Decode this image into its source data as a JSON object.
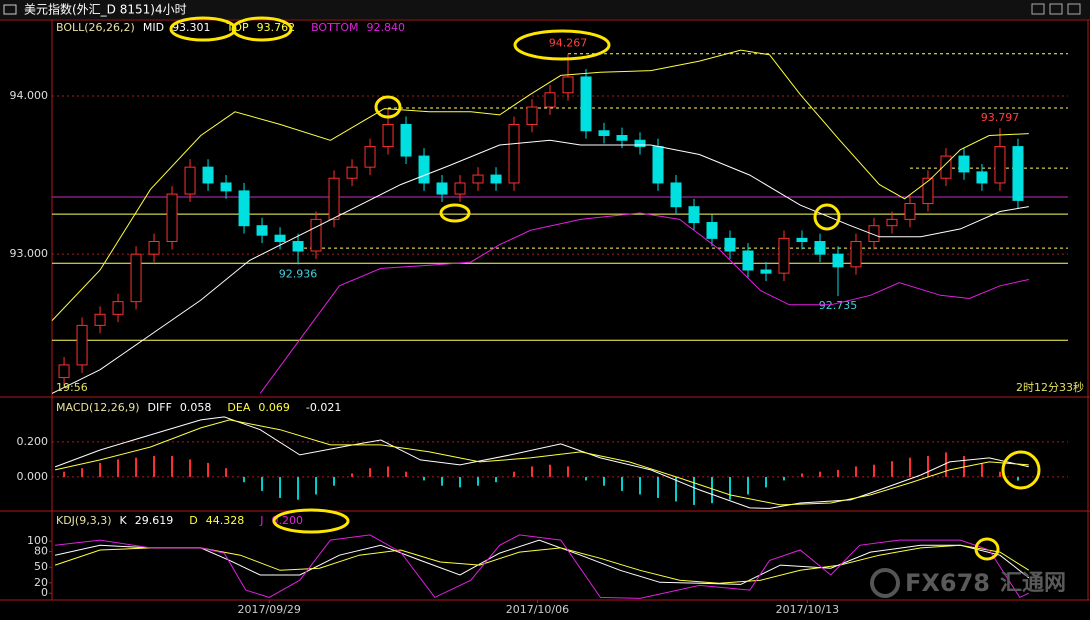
{
  "window": {
    "title": "美元指数(外汇_D 8151)4小时"
  },
  "status": {
    "time_left": "19:56",
    "time_right": "2时12分33秒"
  },
  "watermark": {
    "brand": "FX678",
    "name": "汇通网"
  },
  "chart_data": [
    {
      "type": "candlestick",
      "indicator": "BOLL(26,26,2)",
      "up_color": "#ff3030",
      "down_color": "#00e0e0",
      "xlim": [
        -0.67,
        55.78
      ],
      "ylim": [
        92.11,
        94.48
      ],
      "yticks": [
        {
          "value": 94,
          "label": "94.000"
        },
        {
          "value": 93,
          "label": "93.000"
        }
      ],
      "grid": true,
      "open": [
        92.22,
        92.3,
        92.55,
        92.62,
        92.7,
        93.0,
        93.08,
        93.38,
        93.55,
        93.45,
        93.4,
        93.18,
        93.12,
        93.08,
        93.02,
        93.22,
        93.48,
        93.55,
        93.68,
        93.82,
        93.62,
        93.45,
        93.38,
        93.45,
        93.5,
        93.45,
        93.82,
        93.93,
        94.02,
        94.12,
        93.78,
        93.75,
        93.72,
        93.68,
        93.45,
        93.3,
        93.2,
        93.1,
        93.02,
        92.9,
        92.88,
        93.1,
        93.08,
        93.0,
        92.92,
        93.08,
        93.18,
        93.22,
        93.32,
        93.48,
        93.62,
        93.52,
        93.45,
        93.68
      ],
      "high": [
        92.35,
        92.6,
        92.67,
        92.75,
        93.05,
        93.13,
        93.43,
        93.6,
        93.6,
        93.5,
        93.45,
        93.23,
        93.17,
        93.13,
        93.27,
        93.53,
        93.6,
        93.73,
        93.92,
        93.87,
        93.67,
        93.5,
        93.5,
        93.55,
        93.55,
        93.87,
        93.98,
        94.07,
        94.267,
        94.17,
        93.83,
        93.8,
        93.77,
        93.73,
        93.5,
        93.35,
        93.25,
        93.15,
        93.07,
        92.95,
        93.15,
        93.15,
        93.13,
        93.05,
        93.13,
        93.23,
        93.27,
        93.37,
        93.53,
        93.67,
        93.67,
        93.57,
        93.797,
        93.73
      ],
      "low": [
        92.17,
        92.25,
        92.5,
        92.57,
        92.65,
        92.95,
        93.03,
        93.33,
        93.4,
        93.35,
        93.13,
        93.07,
        93.03,
        92.936,
        92.97,
        93.17,
        93.43,
        93.5,
        93.63,
        93.57,
        93.4,
        93.33,
        93.33,
        93.4,
        93.4,
        93.4,
        93.77,
        93.88,
        93.97,
        93.73,
        93.7,
        93.67,
        93.63,
        93.4,
        93.25,
        93.15,
        93.05,
        92.97,
        92.85,
        92.83,
        92.83,
        93.03,
        92.95,
        92.735,
        92.87,
        93.03,
        93.13,
        93.17,
        93.27,
        93.43,
        93.47,
        93.4,
        93.4,
        93.29
      ],
      "close": [
        92.3,
        92.55,
        92.62,
        92.7,
        93.0,
        93.08,
        93.38,
        93.55,
        93.45,
        93.4,
        93.18,
        93.12,
        93.08,
        93.02,
        93.22,
        93.48,
        93.55,
        93.68,
        93.82,
        93.62,
        93.45,
        93.38,
        93.45,
        93.5,
        93.45,
        93.82,
        93.93,
        94.02,
        94.12,
        93.78,
        93.75,
        93.72,
        93.68,
        93.45,
        93.3,
        93.2,
        93.1,
        93.02,
        92.9,
        92.88,
        93.1,
        93.08,
        93.0,
        92.92,
        93.08,
        93.18,
        93.22,
        93.32,
        93.48,
        93.62,
        93.52,
        93.45,
        93.68,
        93.34
      ],
      "annotations": [
        {
          "field": "low",
          "index": 13,
          "color": "#40d0e0"
        },
        {
          "field": "high",
          "index": 28,
          "color": "#ff4040"
        },
        {
          "field": "low",
          "index": 43,
          "color": "#40d0e0"
        },
        {
          "field": "high",
          "index": 52,
          "color": "#ff4040"
        }
      ],
      "hlines": [
        {
          "value": 93.253,
          "color": "#ffff60",
          "dashed": false
        },
        {
          "value": 92.943,
          "color": "#ffff60",
          "dashed": false
        },
        {
          "value": 92.456,
          "color": "#ffff60",
          "dashed": false
        },
        {
          "value": 93.361,
          "color": "#c030c0",
          "dashed": false
        },
        {
          "value": 94.267,
          "color": "#ffff60",
          "dashed": true,
          "from": 28
        },
        {
          "value": 93.924,
          "color": "#ffff60",
          "dashed": true,
          "from": 18
        },
        {
          "value": 93.544,
          "color": "#ffff60",
          "dashed": true,
          "from": 47
        },
        {
          "value": 93.038,
          "color": "#ffff60",
          "dashed": true,
          "from": 13
        }
      ],
      "series": [
        {
          "name": "MID",
          "color": "#ffffff",
          "current": {
            "value": 93.301,
            "label": "93.301"
          },
          "x": [
            -0.67,
            2,
            4.8,
            7.6,
            10.3,
            13.1,
            15.9,
            18.7,
            21.4,
            24.2,
            27,
            28.7,
            32.6,
            35.3,
            38.1,
            40.9,
            43.7,
            45.3,
            47.6,
            49.8,
            52,
            53.6
          ],
          "values": [
            92.12,
            92.27,
            92.49,
            92.71,
            92.96,
            93.12,
            93.28,
            93.44,
            93.56,
            93.69,
            93.72,
            93.69,
            93.69,
            93.63,
            93.5,
            93.31,
            93.18,
            93.11,
            93.11,
            93.16,
            93.27,
            93.301
          ]
        },
        {
          "name": "TOP",
          "color": "#ffff40",
          "current": {
            "value": 93.762,
            "label": "93.762"
          },
          "x": [
            -0.67,
            2,
            4.8,
            7.6,
            9.5,
            12,
            14.8,
            17.8,
            20.3,
            22.6,
            24.2,
            25.9,
            27.6,
            29.8,
            32.6,
            35.3,
            37.6,
            39.2,
            40.9,
            43.1,
            45.3,
            46.7,
            48.1,
            49.8,
            51.4,
            53.6
          ],
          "values": [
            92.58,
            92.9,
            93.41,
            93.75,
            93.9,
            93.82,
            93.72,
            93.92,
            93.9,
            93.9,
            93.88,
            94.01,
            94.13,
            94.15,
            94.16,
            94.22,
            94.29,
            94.26,
            94.01,
            93.72,
            93.44,
            93.35,
            93.47,
            93.66,
            93.75,
            93.762
          ]
        },
        {
          "name": "BOTTOM",
          "color": "#e020e0",
          "current": {
            "value": 92.84,
            "label": "92.840"
          },
          "x": [
            10.9,
            13.1,
            15.3,
            17.6,
            20.3,
            22.6,
            24.2,
            25.9,
            28.7,
            32,
            34.2,
            36.4,
            38.7,
            40.3,
            42.6,
            44.8,
            46.4,
            48.7,
            50.3,
            52,
            53.6
          ],
          "values": [
            92.12,
            92.46,
            92.8,
            92.91,
            92.93,
            92.95,
            93.06,
            93.15,
            93.22,
            93.26,
            93.22,
            93.03,
            92.77,
            92.68,
            92.68,
            92.74,
            92.82,
            92.74,
            92.72,
            92.8,
            92.84
          ]
        }
      ]
    },
    {
      "type": "macd",
      "indicator": "MACD(12,26,9)",
      "up_color": "#ff3030",
      "down_color": "#00d0d0",
      "xlim": [
        -0.67,
        55.78
      ],
      "ylim": [
        -0.189,
        0.451
      ],
      "yticks": [
        {
          "value": 0.2,
          "label": "0.200"
        },
        {
          "value": 0,
          "label": "0.000"
        }
      ],
      "grid": true,
      "histogram": [
        0.03,
        0.05,
        0.08,
        0.1,
        0.11,
        0.12,
        0.12,
        0.1,
        0.08,
        0.05,
        -0.03,
        -0.08,
        -0.12,
        -0.13,
        -0.1,
        -0.05,
        0.02,
        0.05,
        0.06,
        0.03,
        -0.02,
        -0.05,
        -0.06,
        -0.05,
        -0.03,
        0.03,
        0.06,
        0.07,
        0.06,
        -0.02,
        -0.05,
        -0.08,
        -0.1,
        -0.12,
        -0.14,
        -0.16,
        -0.15,
        -0.13,
        -0.1,
        -0.06,
        -0.02,
        0.02,
        0.03,
        0.04,
        0.06,
        0.07,
        0.09,
        0.11,
        0.12,
        0.14,
        0.12,
        0.08,
        0.03,
        -0.021
      ],
      "series": [
        {
          "name": "DIFF",
          "color": "#ffffff",
          "current": 0.058,
          "x": [
            -0.5,
            2,
            4.8,
            7.6,
            8.9,
            10.9,
            13.1,
            15.9,
            17.6,
            19.8,
            22,
            24.8,
            27.6,
            29.8,
            32.6,
            35.3,
            38.1,
            39.2,
            40.9,
            43.7,
            45.3,
            47.6,
            49.2,
            51.4,
            53.6
          ],
          "values": [
            0.057,
            0.154,
            0.24,
            0.326,
            0.343,
            0.27,
            0.126,
            0.18,
            0.211,
            0.097,
            0.069,
            0.126,
            0.189,
            0.109,
            0.04,
            -0.074,
            -0.177,
            -0.18,
            -0.149,
            -0.131,
            -0.074,
            0.011,
            0.086,
            0.109,
            0.058
          ]
        },
        {
          "name": "DEA",
          "color": "#ffff40",
          "current": 0.069,
          "x": [
            -0.5,
            2,
            4.8,
            7.6,
            9.2,
            12,
            14.8,
            17.6,
            20.3,
            23.1,
            25.9,
            28.7,
            31.4,
            34.2,
            37,
            39.8,
            42.6,
            44.8,
            47,
            49.2,
            51.4,
            53.6
          ],
          "values": [
            0.04,
            0.097,
            0.171,
            0.28,
            0.326,
            0.27,
            0.183,
            0.183,
            0.143,
            0.086,
            0.109,
            0.143,
            0.086,
            -0.006,
            -0.103,
            -0.16,
            -0.149,
            -0.103,
            -0.034,
            0.04,
            0.086,
            0.069
          ]
        }
      ]
    },
    {
      "type": "kdj",
      "indicator": "KDJ(9,3,3)",
      "xlim": [
        -0.67,
        55.78
      ],
      "ylim": [
        -13,
        156
      ],
      "yticks": [
        100,
        80,
        50,
        20,
        0
      ],
      "grid": false,
      "xticks": [
        {
          "value": 11.4,
          "label": "2017/09/29"
        },
        {
          "value": 26.3,
          "label": "2017/10/06"
        },
        {
          "value": 41.3,
          "label": "2017/10/13"
        }
      ],
      "series": [
        {
          "name": "K",
          "color": "#ffffff",
          "current": 29.619,
          "x": [
            -0.5,
            2,
            4.8,
            7.6,
            9.2,
            10.9,
            13.1,
            15.3,
            17.6,
            19.8,
            22,
            24.2,
            26.4,
            28.7,
            30.9,
            33.1,
            35.3,
            37.6,
            39.8,
            42.6,
            44.8,
            47.6,
            49.8,
            52,
            53.6
          ],
          "values": [
            73,
            92,
            87,
            87,
            63,
            35,
            35,
            73,
            92,
            63,
            35,
            77,
            102,
            73,
            44,
            21,
            19,
            17,
            54,
            48,
            79,
            92,
            92,
            73,
            29.6
          ]
        },
        {
          "name": "D",
          "color": "#ffff40",
          "current": 44.328,
          "x": [
            -0.5,
            2,
            4.8,
            7.6,
            9.8,
            12,
            14.2,
            16.4,
            18.7,
            20.9,
            23.1,
            25.3,
            27.6,
            29.8,
            32,
            34.2,
            36.4,
            38.7,
            40.9,
            43.1,
            45.3,
            47.6,
            49.8,
            52,
            53.6
          ],
          "values": [
            54,
            83,
            87,
            87,
            73,
            44,
            48,
            73,
            83,
            60,
            54,
            79,
            87,
            67,
            44,
            25,
            19,
            25,
            44,
            54,
            73,
            87,
            92,
            79,
            44.3
          ]
        },
        {
          "name": "J",
          "color": "#e020e0",
          "current": {
            "value": 0.2,
            "label": "0.200"
          },
          "x": [
            -0.5,
            2,
            4.8,
            7.6,
            8.9,
            10.1,
            11.4,
            13.1,
            14.8,
            17,
            18.7,
            20.6,
            22.6,
            24.2,
            25.3,
            27.6,
            29.8,
            32,
            35.3,
            38.1,
            39.2,
            40.9,
            42.6,
            44.2,
            46.4,
            49.8,
            51.4,
            53.1,
            53.6
          ],
          "values": [
            92,
            102,
            87,
            87,
            77,
            6,
            -8,
            25,
            102,
            112,
            79,
            -8,
            25,
            92,
            112,
            102,
            -8,
            -10,
            15,
            6,
            63,
            83,
            35,
            92,
            102,
            102,
            83,
            -8,
            0.2
          ]
        }
      ]
    }
  ]
}
